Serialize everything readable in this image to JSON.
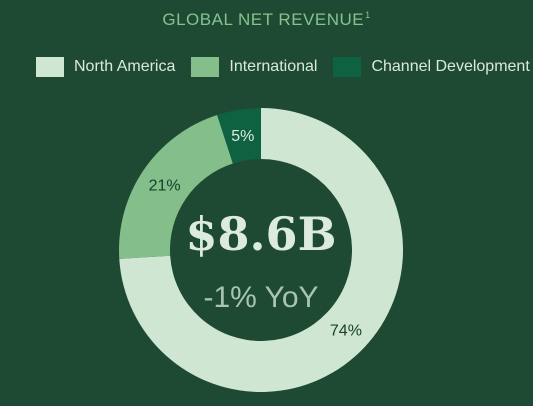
{
  "title": "GLOBAL NET REVENUE",
  "title_footnote": "1",
  "chart_data": {
    "type": "pie",
    "categories": [
      "North America",
      "International",
      "Channel Development"
    ],
    "values": [
      74,
      21,
      5
    ],
    "value_labels": [
      "74%",
      "21%",
      "5%"
    ],
    "colors": [
      "#cfe6d2",
      "#84bf8b",
      "#0e6242"
    ],
    "label_colors": [
      "#15402b",
      "#15402b",
      "#dcebde"
    ],
    "legend_position": "top",
    "center_value": "$8.6B",
    "center_subtitle": "-1% YoY"
  }
}
